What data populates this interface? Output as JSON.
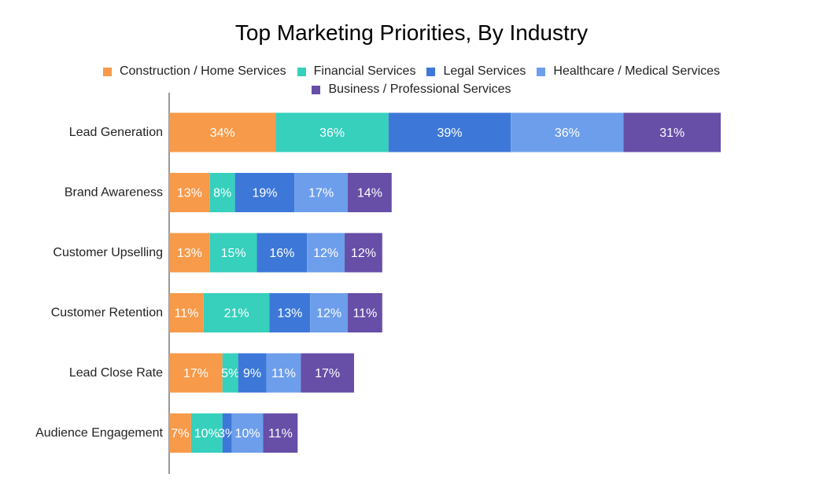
{
  "chart_data": {
    "type": "bar",
    "orientation": "horizontal",
    "stacked": true,
    "title": "Top Marketing Priorities, By Industry",
    "categories": [
      "Lead Generation",
      "Brand Awareness",
      "Customer Upselling",
      "Customer Retention",
      "Lead Close Rate",
      "Audience Engagement"
    ],
    "series": [
      {
        "name": "Construction / Home Services",
        "color": "#f79a4a",
        "values": [
          34,
          13,
          13,
          11,
          17,
          7
        ]
      },
      {
        "name": "Financial Services",
        "color": "#36d0bd",
        "values": [
          36,
          8,
          15,
          21,
          5,
          10
        ]
      },
      {
        "name": "Legal Services",
        "color": "#3d78d8",
        "values": [
          39,
          19,
          16,
          13,
          9,
          3
        ]
      },
      {
        "name": "Healthcare / Medical Services",
        "color": "#6d9eeb",
        "values": [
          36,
          17,
          12,
          12,
          11,
          10
        ]
      },
      {
        "name": "Business / Professional Services",
        "color": "#674ea7",
        "values": [
          31,
          14,
          12,
          11,
          17,
          11
        ]
      }
    ],
    "value_format": "percent",
    "legend_position": "top",
    "grid": false
  }
}
